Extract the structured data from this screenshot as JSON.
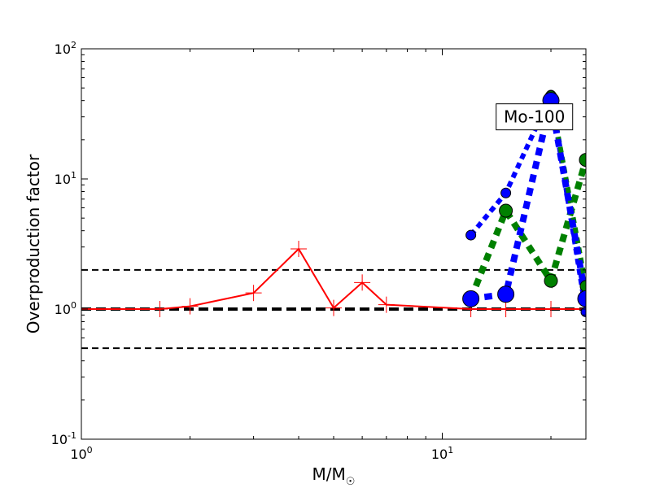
{
  "chart_data": {
    "type": "line",
    "title": "",
    "xlabel": "M/M",
    "xlabel_sub": "☉",
    "ylabel": "Overproduction factor",
    "xscale": "log",
    "yscale": "log",
    "xlim": [
      1,
      25
    ],
    "ylim": [
      0.1,
      100
    ],
    "grid": false,
    "x_ticks": [
      {
        "base": "10",
        "exp": "0",
        "value": 1
      },
      {
        "base": "10",
        "exp": "1",
        "value": 10
      }
    ],
    "y_ticks": [
      {
        "base": "10",
        "exp": "-1",
        "value": 0.1
      },
      {
        "base": "10",
        "exp": "0",
        "value": 1
      },
      {
        "base": "10",
        "exp": "1",
        "value": 10
      },
      {
        "base": "10",
        "exp": "2",
        "value": 100
      }
    ],
    "annotation": {
      "text": "Mo-100",
      "x": 18,
      "y": 30
    },
    "reference_lines": [
      {
        "y": 2,
        "color": "#000000",
        "style": "dashed",
        "width": 2
      },
      {
        "y": 1,
        "color": "#000000",
        "style": "dashed",
        "width": 4
      },
      {
        "y": 0.5,
        "color": "#000000",
        "style": "dashed",
        "width": 2
      }
    ],
    "series": [
      {
        "color": "#ff0000",
        "style": "solid",
        "marker": "plus",
        "width": 2,
        "x": [
          1,
          1.65,
          2,
          3,
          4,
          5,
          6,
          7,
          12,
          15,
          20,
          25
        ],
        "y": [
          1.0,
          1.0,
          1.05,
          1.33,
          2.9,
          1.02,
          1.6,
          1.08,
          1.0,
          1.0,
          1.0,
          1.0
        ]
      },
      {
        "color": "#0000ff",
        "style": "dotted",
        "marker": "circle",
        "width": 6,
        "marker_size": 6,
        "x": [
          12,
          15,
          20,
          25
        ],
        "y": [
          3.7,
          7.8,
          44,
          0.95
        ]
      },
      {
        "color": "#008000",
        "style": "dotted",
        "marker": "circle",
        "width": 8,
        "marker_size": 8,
        "x": [
          12,
          15,
          20,
          25
        ],
        "y": [
          1.2,
          5.7,
          1.65,
          14
        ]
      },
      {
        "color": "#008000",
        "style": "dotted",
        "marker": "circle",
        "width": 6,
        "marker_size": 7,
        "x": [
          20,
          25
        ],
        "y": [
          43,
          1.5
        ]
      },
      {
        "color": "#0000ff",
        "style": "dotted",
        "marker": "circle",
        "width": 8,
        "marker_size": 10,
        "x": [
          12,
          15,
          20,
          25
        ],
        "y": [
          1.2,
          1.3,
          40,
          1.2
        ]
      }
    ]
  }
}
